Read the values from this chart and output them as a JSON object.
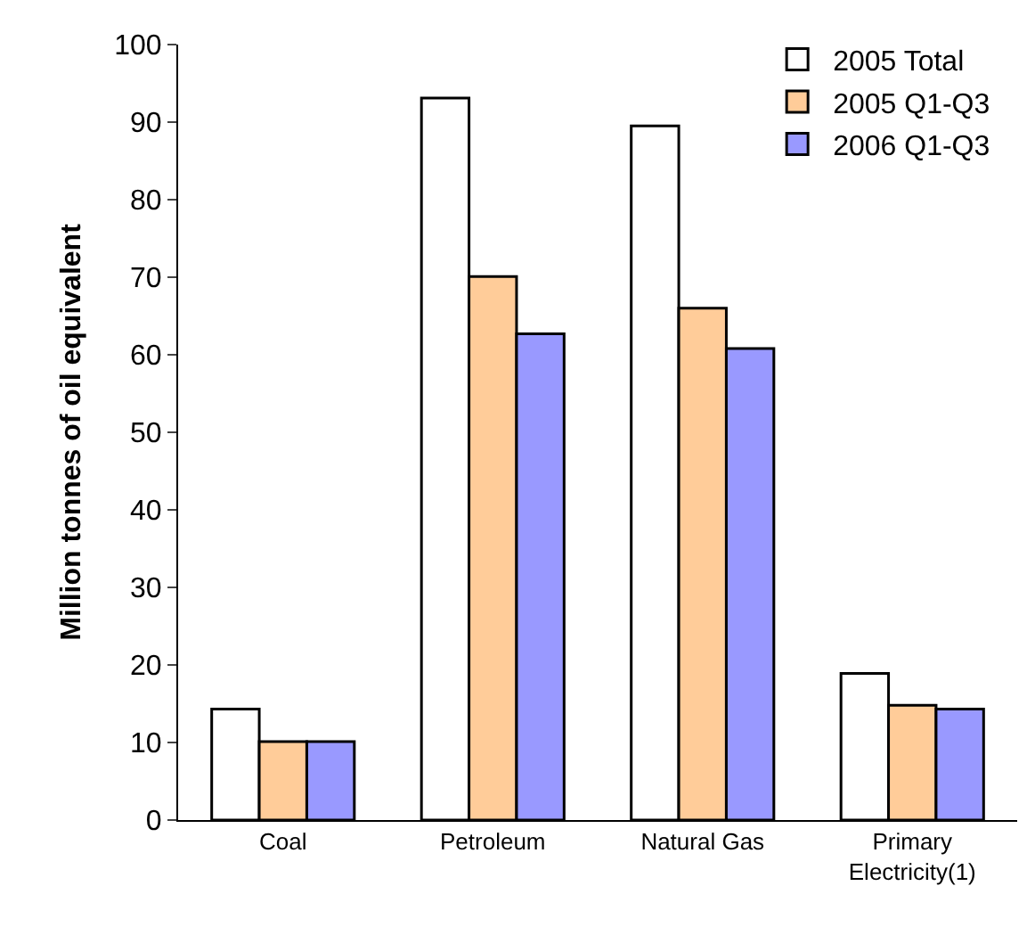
{
  "chart_data": {
    "type": "bar",
    "ylabel": "Million tonnes of oil equivalent",
    "categories": [
      "Coal",
      "Petroleum",
      "Natural Gas",
      "Primary Electricity(1)"
    ],
    "series": [
      {
        "name": "2005 Total",
        "color": "#ffffff",
        "values": [
          14.3,
          93.1,
          89.5,
          18.9
        ]
      },
      {
        "name": "2005 Q1-Q3",
        "color": "#ffcc99",
        "values": [
          10.1,
          70.1,
          66.0,
          14.8
        ]
      },
      {
        "name": "2006 Q1-Q3",
        "color": "#9999ff",
        "values": [
          10.1,
          62.7,
          60.8,
          14.3
        ]
      }
    ],
    "ylim": [
      0,
      100
    ],
    "yticks": [
      0,
      10,
      20,
      30,
      40,
      50,
      60,
      70,
      80,
      90,
      100
    ],
    "grid": false,
    "legend": "top right"
  }
}
